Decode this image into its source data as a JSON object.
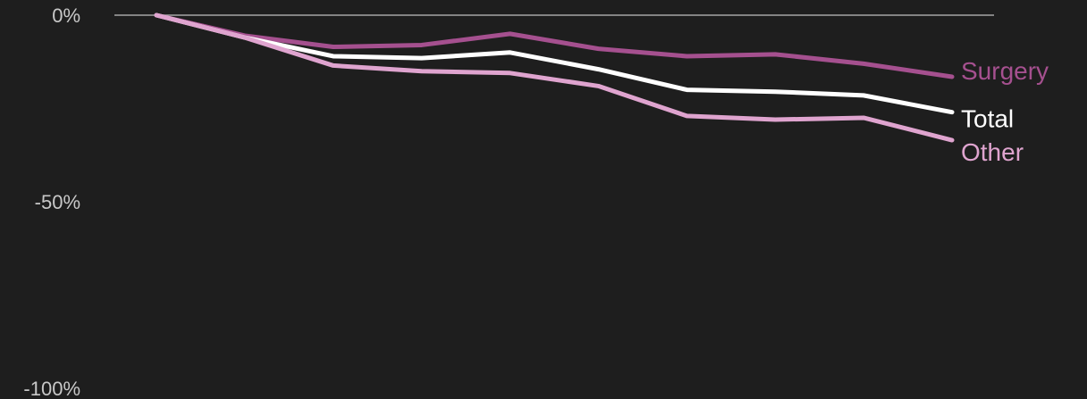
{
  "chart_data": {
    "type": "line",
    "title": "",
    "xlabel": "",
    "ylabel": "",
    "ylim": [
      -100,
      0
    ],
    "yticks": [
      {
        "value": 0,
        "label": "0%"
      },
      {
        "value": -50,
        "label": "-50%"
      },
      {
        "value": -100,
        "label": "-100%"
      }
    ],
    "x": [
      1,
      2,
      3,
      4,
      5,
      6,
      7,
      8,
      9,
      10
    ],
    "zero_line": true,
    "grid": false,
    "legend": "inline-right",
    "series": [
      {
        "name": "Surgery",
        "color": "#a5508f",
        "values": [
          0,
          -5.5,
          -8.5,
          -8,
          -5,
          -9,
          -11,
          -10.5,
          -13,
          -16.5
        ]
      },
      {
        "name": "Total",
        "color": "#ffffff",
        "values": [
          0,
          -6,
          -11,
          -11.5,
          -10,
          -14.5,
          -20,
          -20.5,
          -21.5,
          -26
        ]
      },
      {
        "name": "Other",
        "color": "#dfa4cf",
        "values": [
          0,
          -6,
          -13.5,
          -15,
          -15.5,
          -19,
          -27,
          -28,
          -27.5,
          -33.5
        ]
      }
    ]
  }
}
